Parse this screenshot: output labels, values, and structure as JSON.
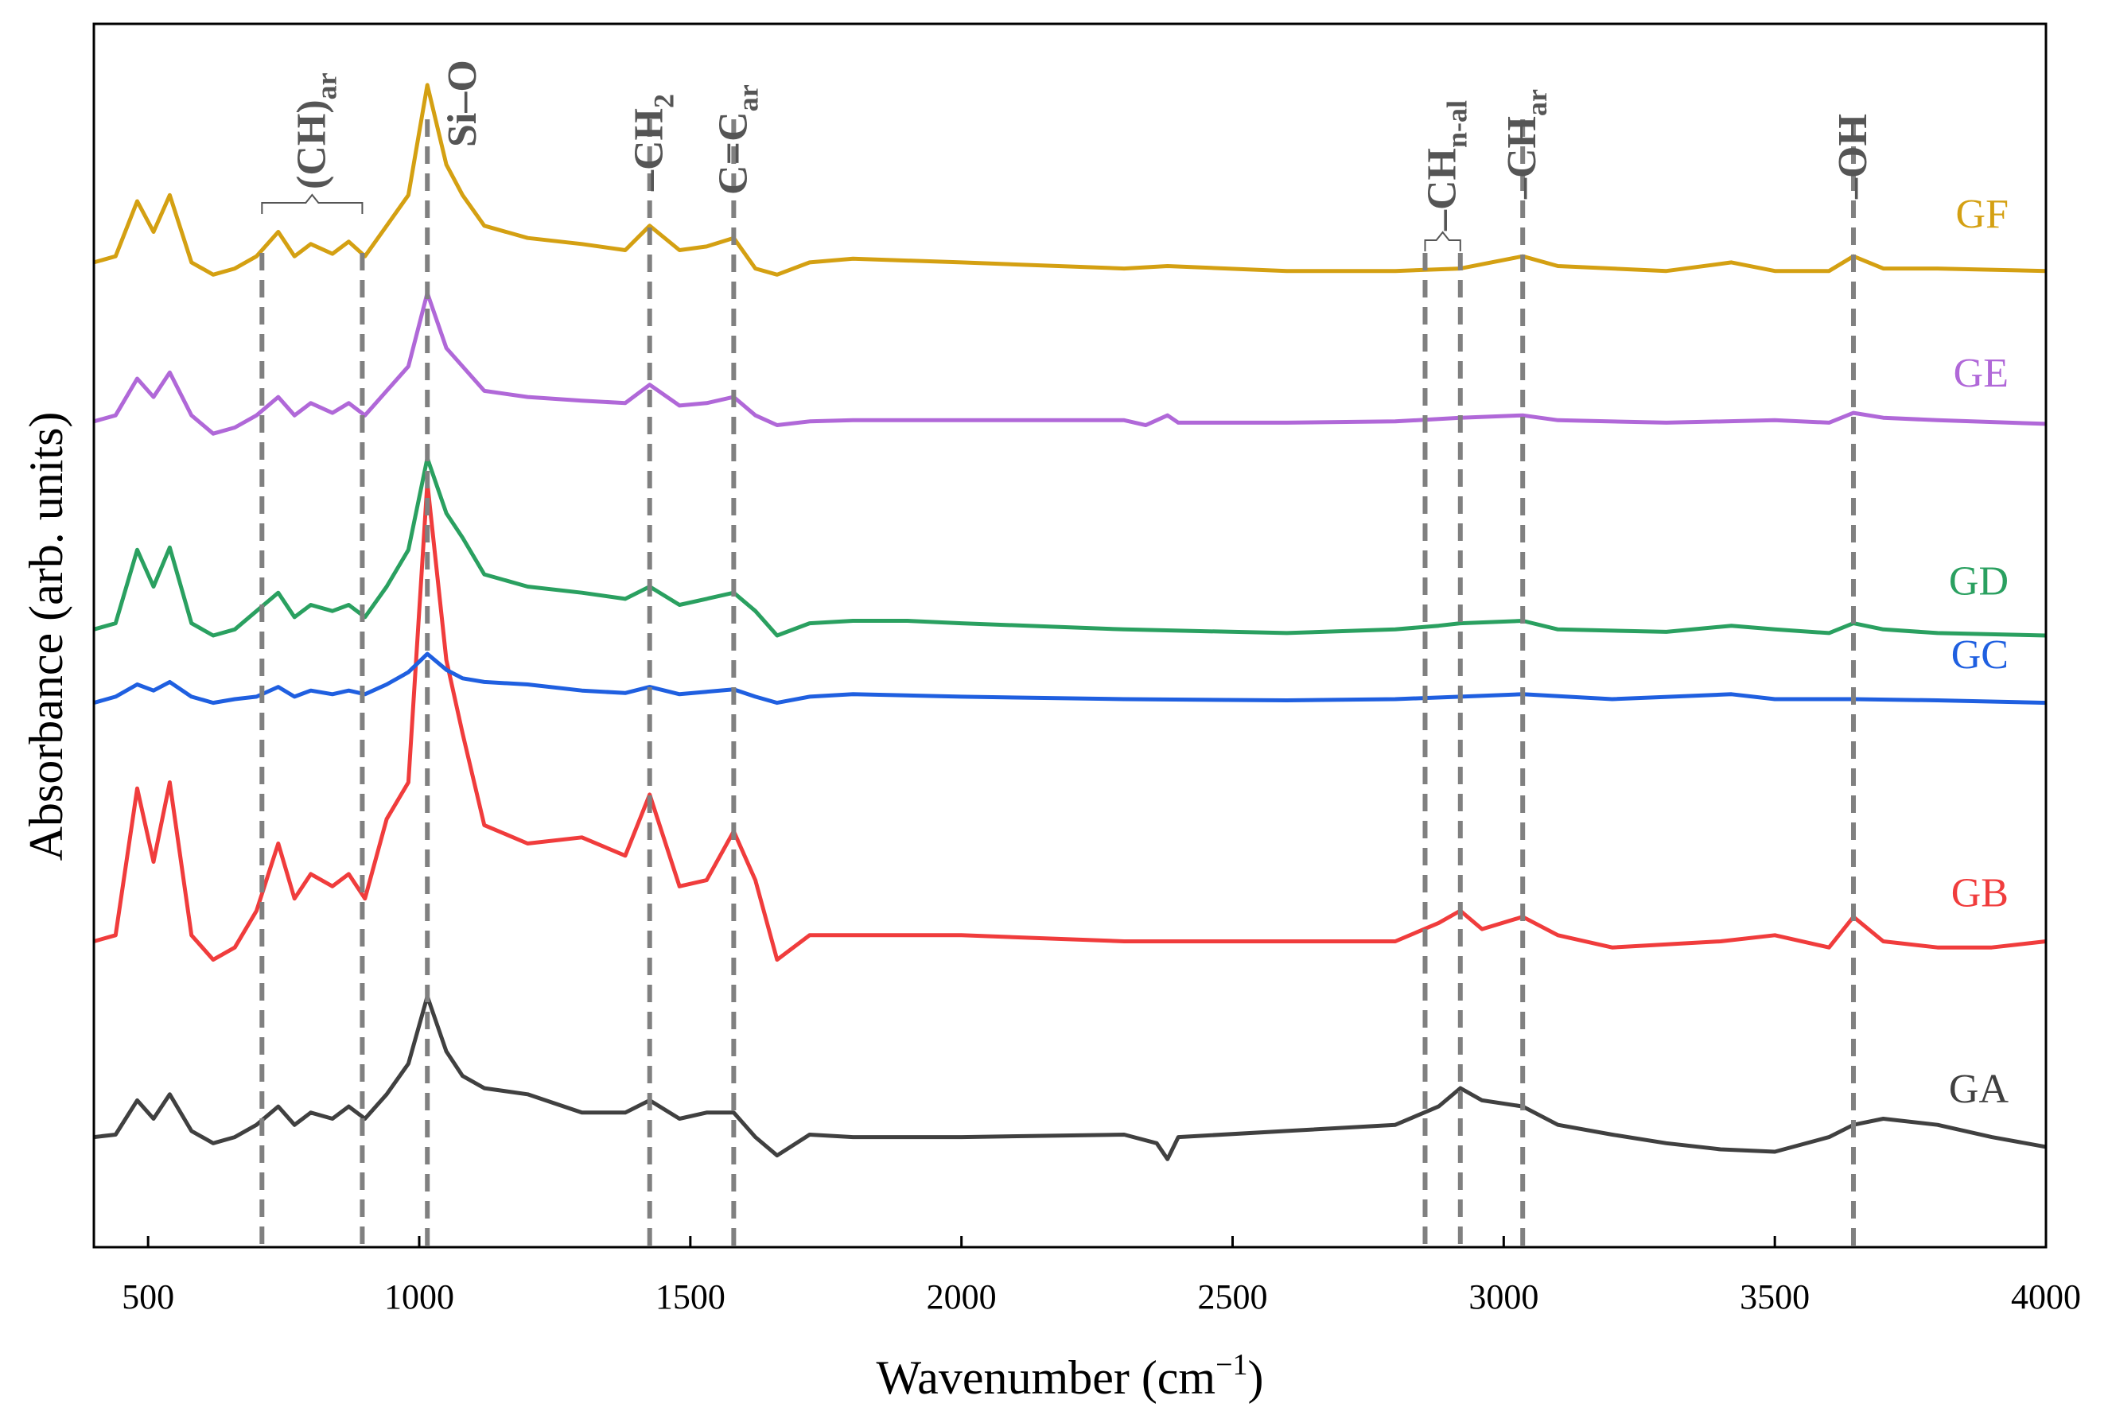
{
  "chart_data": {
    "type": "line",
    "title": "",
    "xlabel": "Wavenumber (cm",
    "xlabel_superscript": "−1",
    "xlabel_suffix": ")",
    "ylabel": "Absorbance (arb. units)",
    "xlim": [
      400,
      4000
    ],
    "ylim": [
      0,
      10
    ],
    "xticks": [
      500,
      1000,
      1500,
      2000,
      2500,
      3000,
      3500,
      4000
    ],
    "y_ticks_shown": false,
    "grid": false,
    "legend": "inline labels at right end of each curve",
    "peak_markers": [
      {
        "name": "(CH)ar",
        "label_main": "(CH)",
        "label_sub": "ar",
        "x": [
          710,
          895
        ],
        "bracket": true
      },
      {
        "name": "Si-O",
        "label_main": "Si–O",
        "label_sub": "",
        "x": [
          1015
        ],
        "bracket": false
      },
      {
        "name": "CH2",
        "label_main": "–CH",
        "label_sub": "2",
        "x": [
          1425
        ],
        "bracket": false
      },
      {
        "name": "C=Car",
        "label_main": "C=C",
        "label_sub": "ar",
        "x": [
          1580
        ],
        "bracket": false
      },
      {
        "name": "CHn-al",
        "label_main": "–CH",
        "label_sub": "n-al",
        "x": [
          2855,
          2920
        ],
        "bracket": true
      },
      {
        "name": "CHar",
        "label_main": "–CH",
        "label_sub": "ar",
        "x": [
          3035
        ],
        "bracket": false
      },
      {
        "name": "OH",
        "label_main": "–OH",
        "label_sub": "",
        "x": [
          3645
        ],
        "bracket": false
      }
    ],
    "series": [
      {
        "name": "GA",
        "color": "#404040",
        "baseline": 0.9,
        "x": [
          400,
          440,
          480,
          510,
          540,
          580,
          620,
          660,
          700,
          740,
          770,
          800,
          840,
          870,
          900,
          940,
          980,
          1015,
          1050,
          1080,
          1120,
          1200,
          1300,
          1380,
          1425,
          1480,
          1530,
          1580,
          1620,
          1660,
          1720,
          1800,
          2000,
          2300,
          2360,
          2380,
          2400,
          2600,
          2800,
          2880,
          2920,
          2960,
          3035,
          3100,
          3200,
          3300,
          3400,
          3500,
          3600,
          3645,
          3700,
          3800,
          3900,
          4000
        ],
        "y": [
          0.9,
          0.92,
          1.2,
          1.05,
          1.25,
          0.95,
          0.85,
          0.9,
          1.0,
          1.15,
          1.0,
          1.1,
          1.05,
          1.15,
          1.05,
          1.25,
          1.5,
          2.05,
          1.6,
          1.4,
          1.3,
          1.25,
          1.1,
          1.1,
          1.2,
          1.05,
          1.1,
          1.1,
          0.9,
          0.75,
          0.92,
          0.9,
          0.9,
          0.92,
          0.85,
          0.72,
          0.9,
          0.95,
          1.0,
          1.15,
          1.3,
          1.2,
          1.15,
          1.0,
          0.92,
          0.85,
          0.8,
          0.78,
          0.9,
          1.0,
          1.05,
          1.0,
          0.9,
          0.82
        ]
      },
      {
        "name": "GB",
        "color": "#f03c3c",
        "baseline": 2.5,
        "x": [
          400,
          440,
          480,
          510,
          540,
          580,
          620,
          660,
          700,
          740,
          770,
          800,
          840,
          870,
          900,
          940,
          980,
          1015,
          1050,
          1080,
          1120,
          1200,
          1300,
          1380,
          1425,
          1480,
          1530,
          1580,
          1620,
          1660,
          1720,
          1800,
          2000,
          2300,
          2600,
          2800,
          2880,
          2920,
          2960,
          3035,
          3100,
          3200,
          3400,
          3500,
          3600,
          3645,
          3700,
          3800,
          3900,
          4000
        ],
        "y": [
          2.5,
          2.55,
          3.75,
          3.15,
          3.8,
          2.55,
          2.35,
          2.45,
          2.75,
          3.3,
          2.85,
          3.05,
          2.95,
          3.05,
          2.85,
          3.5,
          3.8,
          6.25,
          4.8,
          4.2,
          3.45,
          3.3,
          3.35,
          3.2,
          3.7,
          2.95,
          3.0,
          3.4,
          3.0,
          2.35,
          2.55,
          2.55,
          2.55,
          2.5,
          2.5,
          2.5,
          2.65,
          2.75,
          2.6,
          2.7,
          2.55,
          2.45,
          2.5,
          2.55,
          2.45,
          2.7,
          2.5,
          2.45,
          2.45,
          2.5
        ]
      },
      {
        "name": "GC",
        "color": "#1f5fe0",
        "baseline": 4.45,
        "x": [
          400,
          440,
          480,
          510,
          540,
          580,
          620,
          660,
          700,
          740,
          770,
          800,
          840,
          870,
          900,
          940,
          980,
          1015,
          1050,
          1080,
          1120,
          1200,
          1300,
          1380,
          1425,
          1480,
          1530,
          1580,
          1620,
          1660,
          1720,
          1800,
          2000,
          2300,
          2600,
          2800,
          2920,
          3035,
          3200,
          3420,
          3500,
          3645,
          3800,
          4000
        ],
        "y": [
          4.45,
          4.5,
          4.6,
          4.55,
          4.62,
          4.5,
          4.45,
          4.48,
          4.5,
          4.58,
          4.5,
          4.55,
          4.52,
          4.55,
          4.52,
          4.6,
          4.7,
          4.85,
          4.72,
          4.65,
          4.62,
          4.6,
          4.55,
          4.53,
          4.58,
          4.52,
          4.54,
          4.56,
          4.5,
          4.45,
          4.5,
          4.52,
          4.5,
          4.48,
          4.47,
          4.48,
          4.5,
          4.52,
          4.48,
          4.52,
          4.48,
          4.48,
          4.47,
          4.45
        ]
      },
      {
        "name": "GD",
        "color": "#2aa060",
        "baseline": 5.05,
        "x": [
          400,
          440,
          480,
          510,
          540,
          580,
          620,
          660,
          700,
          740,
          770,
          800,
          840,
          870,
          900,
          940,
          980,
          1015,
          1050,
          1080,
          1120,
          1200,
          1300,
          1380,
          1425,
          1480,
          1530,
          1580,
          1620,
          1660,
          1720,
          1800,
          1900,
          2000,
          2300,
          2600,
          2800,
          2880,
          2920,
          3035,
          3100,
          3300,
          3420,
          3500,
          3600,
          3645,
          3700,
          3800,
          4000
        ],
        "y": [
          5.05,
          5.1,
          5.7,
          5.4,
          5.72,
          5.1,
          5.0,
          5.05,
          5.2,
          5.35,
          5.15,
          5.25,
          5.2,
          5.25,
          5.15,
          5.4,
          5.7,
          6.45,
          6.0,
          5.8,
          5.5,
          5.4,
          5.35,
          5.3,
          5.4,
          5.25,
          5.3,
          5.35,
          5.2,
          5.0,
          5.1,
          5.12,
          5.12,
          5.1,
          5.05,
          5.02,
          5.05,
          5.08,
          5.1,
          5.12,
          5.05,
          5.03,
          5.08,
          5.05,
          5.02,
          5.1,
          5.05,
          5.02,
          5.0
        ]
      },
      {
        "name": "GE",
        "color": "#b068d8",
        "baseline": 6.75,
        "x": [
          400,
          440,
          480,
          510,
          540,
          580,
          620,
          660,
          700,
          740,
          770,
          800,
          840,
          870,
          900,
          940,
          980,
          1015,
          1050,
          1080,
          1120,
          1200,
          1300,
          1380,
          1425,
          1480,
          1530,
          1580,
          1620,
          1660,
          1720,
          1800,
          2000,
          2300,
          2340,
          2380,
          2400,
          2600,
          2800,
          2920,
          3035,
          3100,
          3300,
          3500,
          3600,
          3645,
          3700,
          3800,
          4000
        ],
        "y": [
          6.75,
          6.8,
          7.1,
          6.95,
          7.15,
          6.8,
          6.65,
          6.7,
          6.8,
          6.95,
          6.8,
          6.9,
          6.82,
          6.9,
          6.8,
          7.0,
          7.2,
          7.8,
          7.35,
          7.2,
          7.0,
          6.95,
          6.92,
          6.9,
          7.05,
          6.88,
          6.9,
          6.95,
          6.8,
          6.72,
          6.75,
          6.76,
          6.76,
          6.76,
          6.72,
          6.8,
          6.74,
          6.74,
          6.75,
          6.78,
          6.8,
          6.76,
          6.74,
          6.76,
          6.74,
          6.82,
          6.78,
          6.76,
          6.73
        ]
      },
      {
        "name": "GF",
        "color": "#d4a012",
        "baseline": 8.05,
        "x": [
          400,
          440,
          480,
          510,
          540,
          580,
          620,
          660,
          700,
          740,
          770,
          800,
          840,
          870,
          900,
          940,
          980,
          1015,
          1050,
          1080,
          1120,
          1200,
          1300,
          1380,
          1425,
          1480,
          1530,
          1580,
          1620,
          1660,
          1720,
          1800,
          2000,
          2300,
          2380,
          2600,
          2800,
          2920,
          3035,
          3100,
          3300,
          3420,
          3500,
          3600,
          3645,
          3700,
          3800,
          4000
        ],
        "y": [
          8.05,
          8.1,
          8.55,
          8.3,
          8.6,
          8.05,
          7.95,
          8.0,
          8.1,
          8.3,
          8.1,
          8.2,
          8.12,
          8.22,
          8.1,
          8.35,
          8.6,
          9.5,
          8.85,
          8.6,
          8.35,
          8.25,
          8.2,
          8.15,
          8.35,
          8.15,
          8.18,
          8.25,
          8.0,
          7.95,
          8.05,
          8.08,
          8.05,
          8.0,
          8.02,
          7.98,
          7.98,
          8.0,
          8.1,
          8.02,
          7.98,
          8.05,
          7.98,
          7.98,
          8.1,
          8.0,
          8.0,
          7.98
        ]
      }
    ]
  }
}
